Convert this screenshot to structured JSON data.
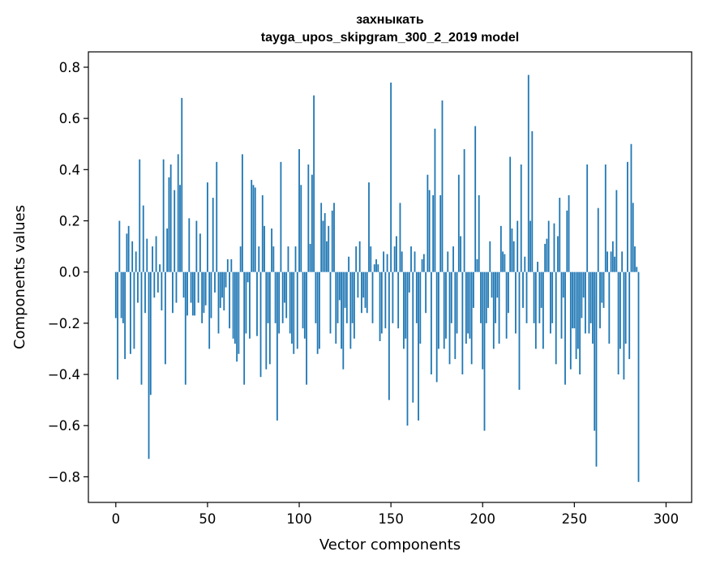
{
  "chart_data": {
    "type": "bar",
    "title_line1": "захныкать",
    "title_line2": "tayga_upos_skipgram_300_2_2019 model",
    "xlabel": "Vector components",
    "ylabel": "Components values",
    "xlim": [
      -14.95,
      313.95
    ],
    "ylim": [
      -0.9,
      0.86
    ],
    "xticks": [
      0,
      50,
      100,
      150,
      200,
      250,
      300
    ],
    "xtick_labels": [
      "0",
      "50",
      "100",
      "150",
      "200",
      "250",
      "300"
    ],
    "yticks": [
      -0.8,
      -0.6,
      -0.4,
      -0.2,
      0.0,
      0.2,
      0.4,
      0.6,
      0.8
    ],
    "ytick_labels": [
      "−0.8",
      "−0.6",
      "−0.4",
      "−0.2",
      "0.0",
      "0.2",
      "0.4",
      "0.6",
      "0.8"
    ],
    "bar_color": "#1f77b4",
    "values": [
      -0.18,
      -0.42,
      0.2,
      -0.18,
      -0.2,
      -0.34,
      0.15,
      0.18,
      -0.32,
      0.12,
      -0.3,
      0.08,
      -0.12,
      0.44,
      -0.44,
      0.26,
      -0.16,
      0.13,
      -0.73,
      -0.48,
      0.1,
      -0.1,
      0.14,
      -0.08,
      0.03,
      -0.15,
      0.44,
      -0.36,
      0.17,
      0.37,
      0.42,
      -0.16,
      0.32,
      -0.12,
      0.46,
      0.34,
      0.68,
      -0.1,
      -0.44,
      -0.17,
      0.21,
      -0.12,
      -0.17,
      -0.17,
      0.2,
      -0.12,
      0.15,
      -0.2,
      -0.16,
      -0.13,
      0.35,
      -0.3,
      -0.18,
      0.29,
      -0.08,
      0.43,
      -0.24,
      -0.14,
      -0.1,
      -0.15,
      -0.06,
      0.05,
      -0.22,
      0.05,
      -0.26,
      -0.28,
      -0.35,
      -0.32,
      0.1,
      0.46,
      -0.44,
      -0.24,
      -0.04,
      -0.26,
      0.36,
      0.34,
      0.33,
      -0.25,
      0.1,
      -0.41,
      0.3,
      0.18,
      -0.38,
      -0.2,
      -0.36,
      0.17,
      0.1,
      -0.2,
      -0.58,
      -0.24,
      0.43,
      -0.2,
      -0.12,
      -0.18,
      0.1,
      -0.24,
      -0.28,
      -0.32,
      0.1,
      -0.3,
      0.48,
      0.34,
      -0.22,
      -0.26,
      -0.44,
      0.42,
      0.11,
      0.38,
      0.69,
      -0.2,
      -0.32,
      -0.3,
      0.27,
      0.2,
      0.23,
      0.12,
      0.18,
      -0.24,
      0.24,
      0.27,
      -0.28,
      -0.2,
      -0.11,
      -0.3,
      -0.38,
      -0.14,
      -0.2,
      0.06,
      -0.3,
      -0.2,
      -0.26,
      0.1,
      -0.1,
      0.12,
      -0.16,
      -0.1,
      -0.14,
      -0.16,
      0.35,
      0.1,
      -0.2,
      0.03,
      0.05,
      0.03,
      -0.27,
      -0.24,
      0.08,
      -0.22,
      0.07,
      -0.5,
      0.74,
      -0.2,
      0.1,
      0.14,
      -0.22,
      0.27,
      0.08,
      -0.3,
      -0.26,
      -0.6,
      -0.08,
      0.1,
      -0.51,
      0.08,
      -0.2,
      -0.58,
      -0.28,
      0.05,
      0.07,
      -0.16,
      0.38,
      0.32,
      -0.4,
      0.3,
      0.56,
      -0.43,
      -0.3,
      0.3,
      0.67,
      -0.3,
      -0.26,
      0.08,
      -0.36,
      -0.2,
      0.1,
      -0.34,
      -0.24,
      0.38,
      0.14,
      -0.4,
      0.48,
      -0.28,
      -0.24,
      -0.26,
      -0.36,
      -0.14,
      0.57,
      0.05,
      0.3,
      -0.2,
      -0.38,
      -0.62,
      -0.2,
      -0.14,
      0.12,
      -0.1,
      -0.3,
      -0.2,
      -0.1,
      -0.28,
      0.18,
      0.08,
      0.07,
      -0.26,
      -0.16,
      0.45,
      0.17,
      0.12,
      -0.24,
      0.2,
      -0.46,
      0.42,
      -0.14,
      0.06,
      -0.2,
      0.77,
      0.2,
      0.55,
      -0.2,
      -0.3,
      0.04,
      -0.2,
      -0.14,
      -0.3,
      0.11,
      0.13,
      0.2,
      -0.24,
      -0.2,
      0.19,
      -0.36,
      0.14,
      0.29,
      -0.26,
      -0.1,
      -0.44,
      0.24,
      0.3,
      -0.38,
      -0.22,
      -0.22,
      -0.34,
      -0.3,
      -0.4,
      -0.18,
      -0.1,
      -0.24,
      0.42,
      -0.24,
      -0.2,
      -0.28,
      -0.62,
      -0.76,
      0.25,
      -0.22,
      -0.12,
      -0.14,
      0.42,
      0.08,
      -0.28,
      0.08,
      0.12,
      0.06,
      0.32,
      -0.4,
      -0.3,
      0.08,
      -0.42,
      -0.28,
      0.43,
      -0.34,
      0.5,
      0.27,
      0.1,
      0.02,
      -0.82
    ]
  }
}
